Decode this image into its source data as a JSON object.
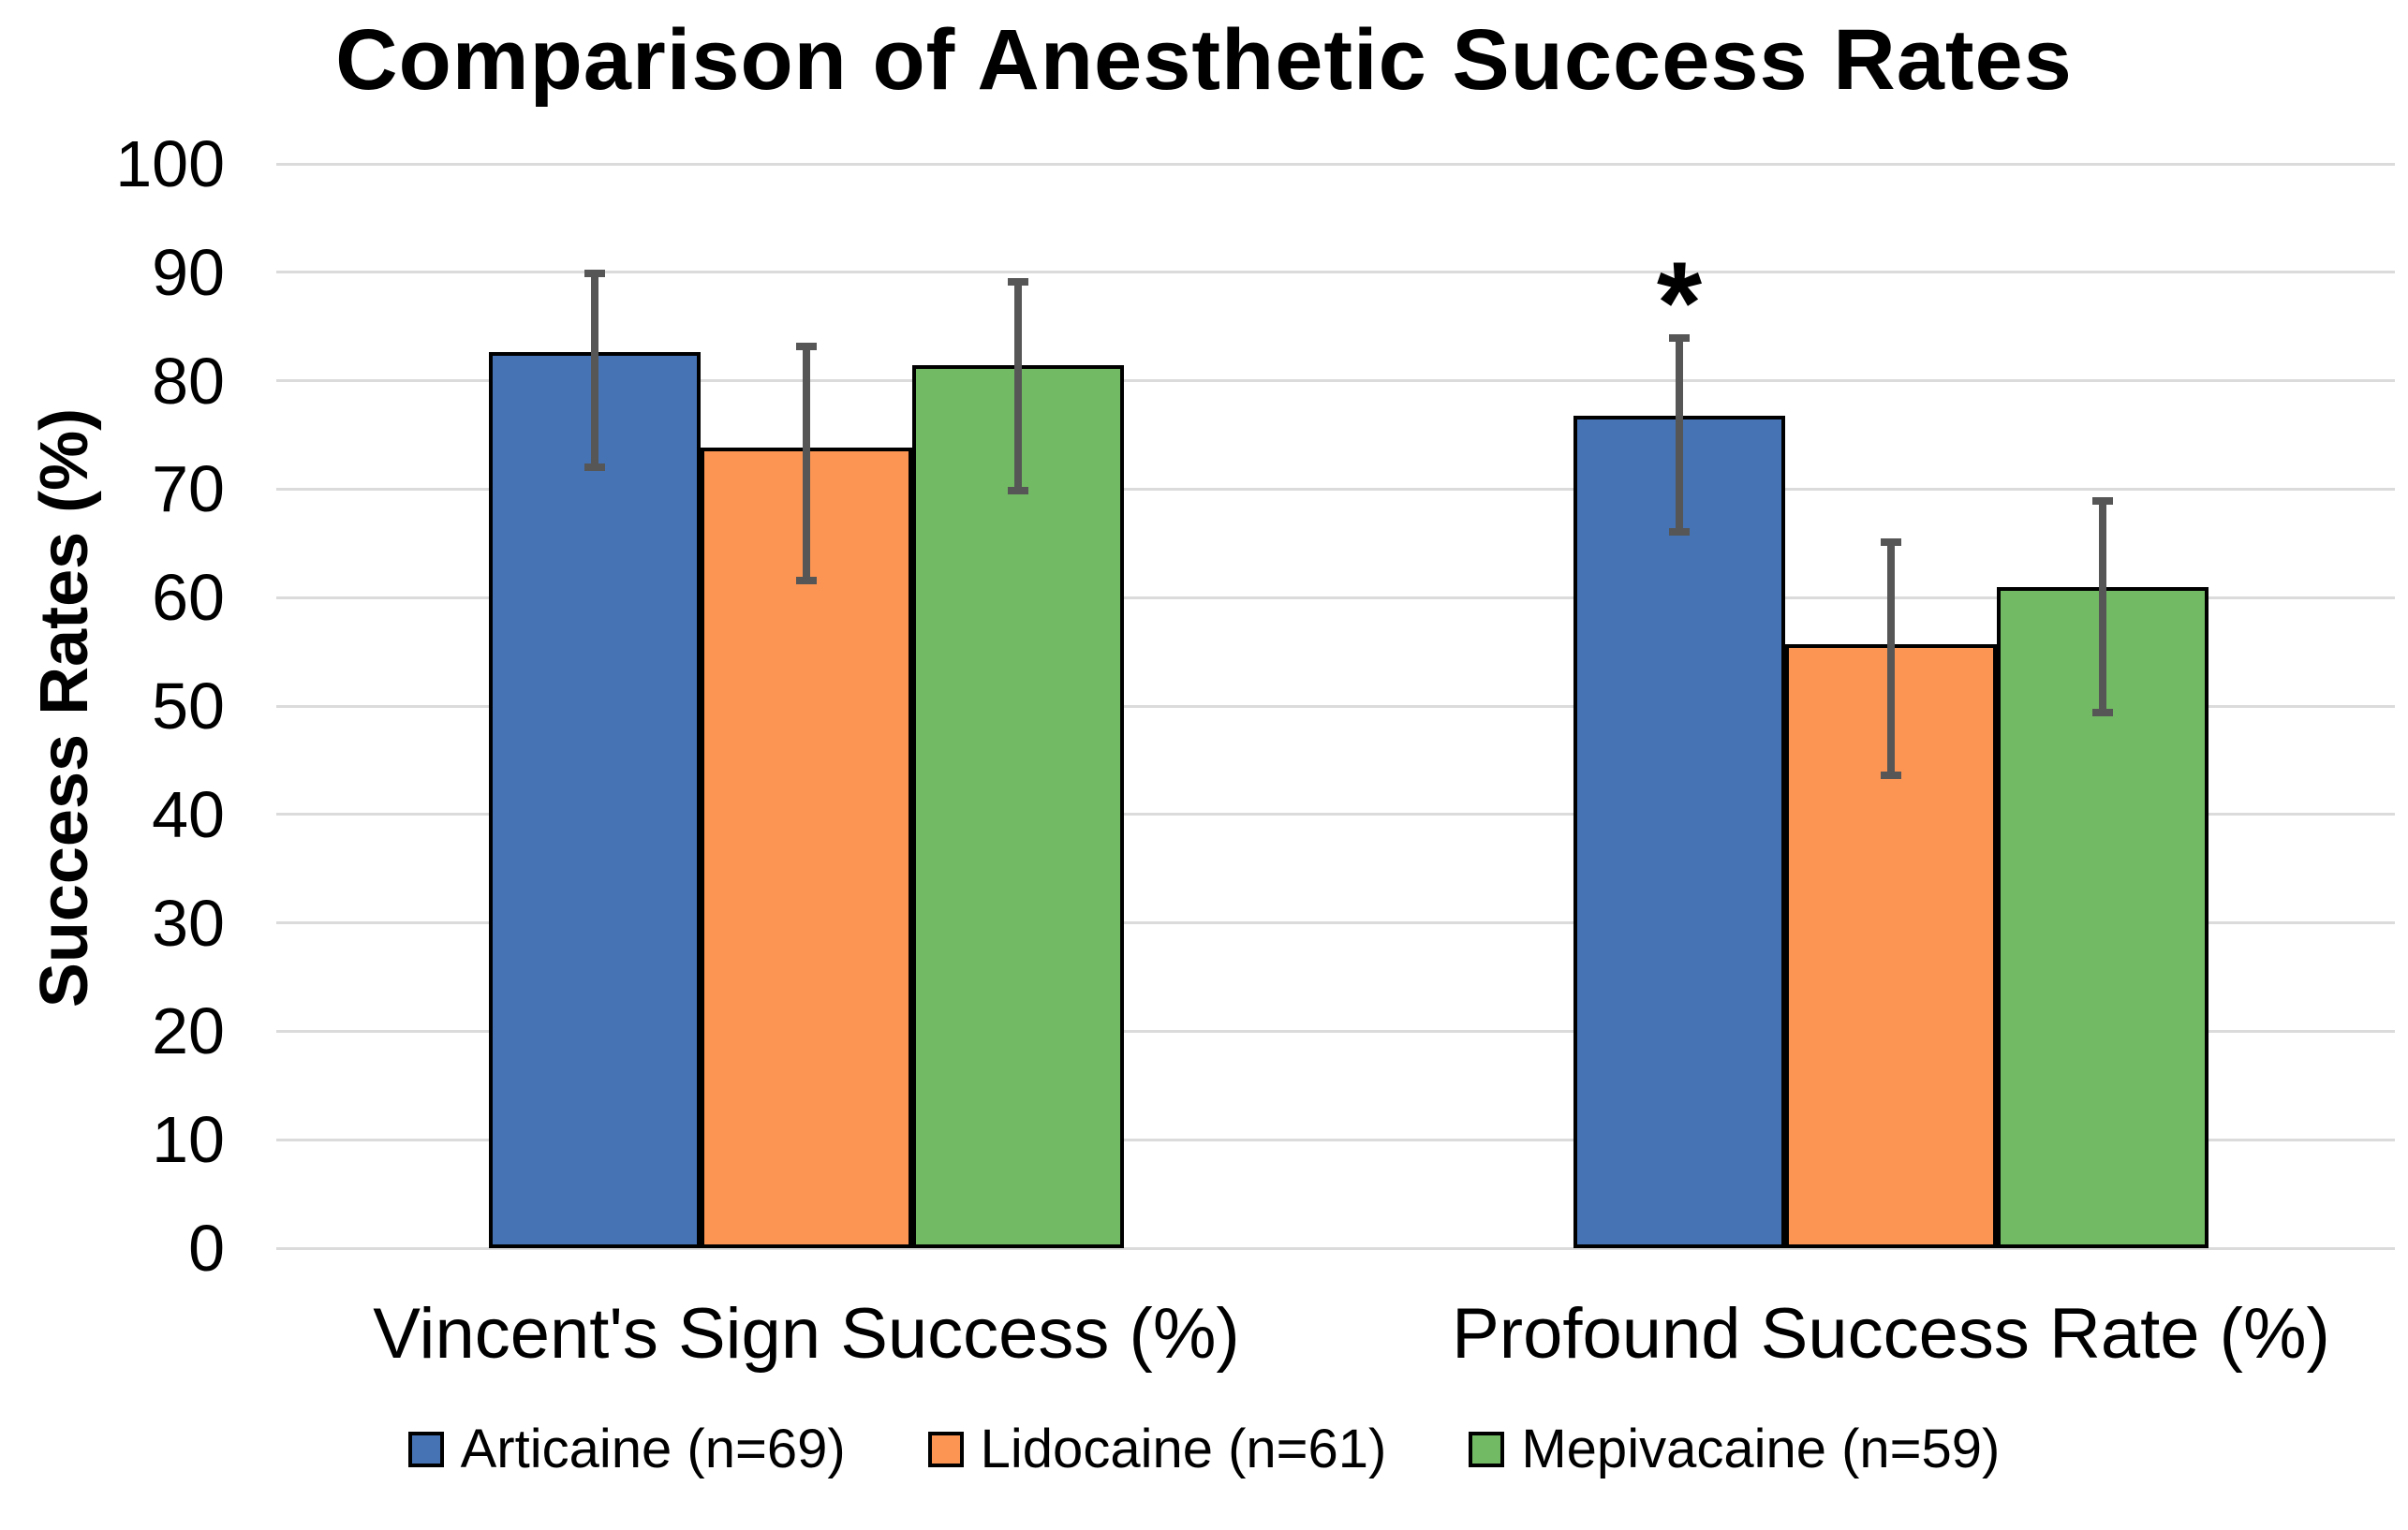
{
  "chart_data": {
    "type": "bar",
    "title": "Comparison of Anesthetic Success Rates",
    "ylabel": "Success Rates (%)",
    "xlabel": "",
    "ylim": [
      0,
      100
    ],
    "ytick_step": 10,
    "ytick_labels": [
      "0",
      "10",
      "20",
      "30",
      "40",
      "50",
      "60",
      "70",
      "80",
      "90",
      "100"
    ],
    "grid": "horizontal",
    "legend_position": "bottom",
    "categories": [
      "Vincent's Sign Success (%)",
      "Profound Success Rate (%)"
    ],
    "series": [
      {
        "name": "Articaine (n=69)",
        "color": "#4573B4",
        "values": [
          82.6,
          76.8
        ],
        "error_low": [
          72.0,
          66.1
        ],
        "error_high": [
          89.9,
          83.9
        ]
      },
      {
        "name": "Lidocaine (n=61)",
        "color": "#FC9553",
        "values": [
          73.8,
          55.7
        ],
        "error_low": [
          61.6,
          43.6
        ],
        "error_high": [
          83.2,
          65.1
        ]
      },
      {
        "name": "Mepivacaine (n=59)",
        "color": "#73BA64",
        "values": [
          81.4,
          61.0
        ],
        "error_low": [
          69.9,
          49.4
        ],
        "error_high": [
          89.1,
          68.9
        ]
      }
    ],
    "annotations": [
      {
        "text": "*",
        "category_index": 1,
        "series_index": 0,
        "meaning": "significance-marker"
      }
    ],
    "colors": {
      "bar_border": "#000000",
      "error_bar": "#565656",
      "gridline": "#DBDBDB",
      "text": "#000000",
      "background": "#FFFFFF"
    }
  }
}
